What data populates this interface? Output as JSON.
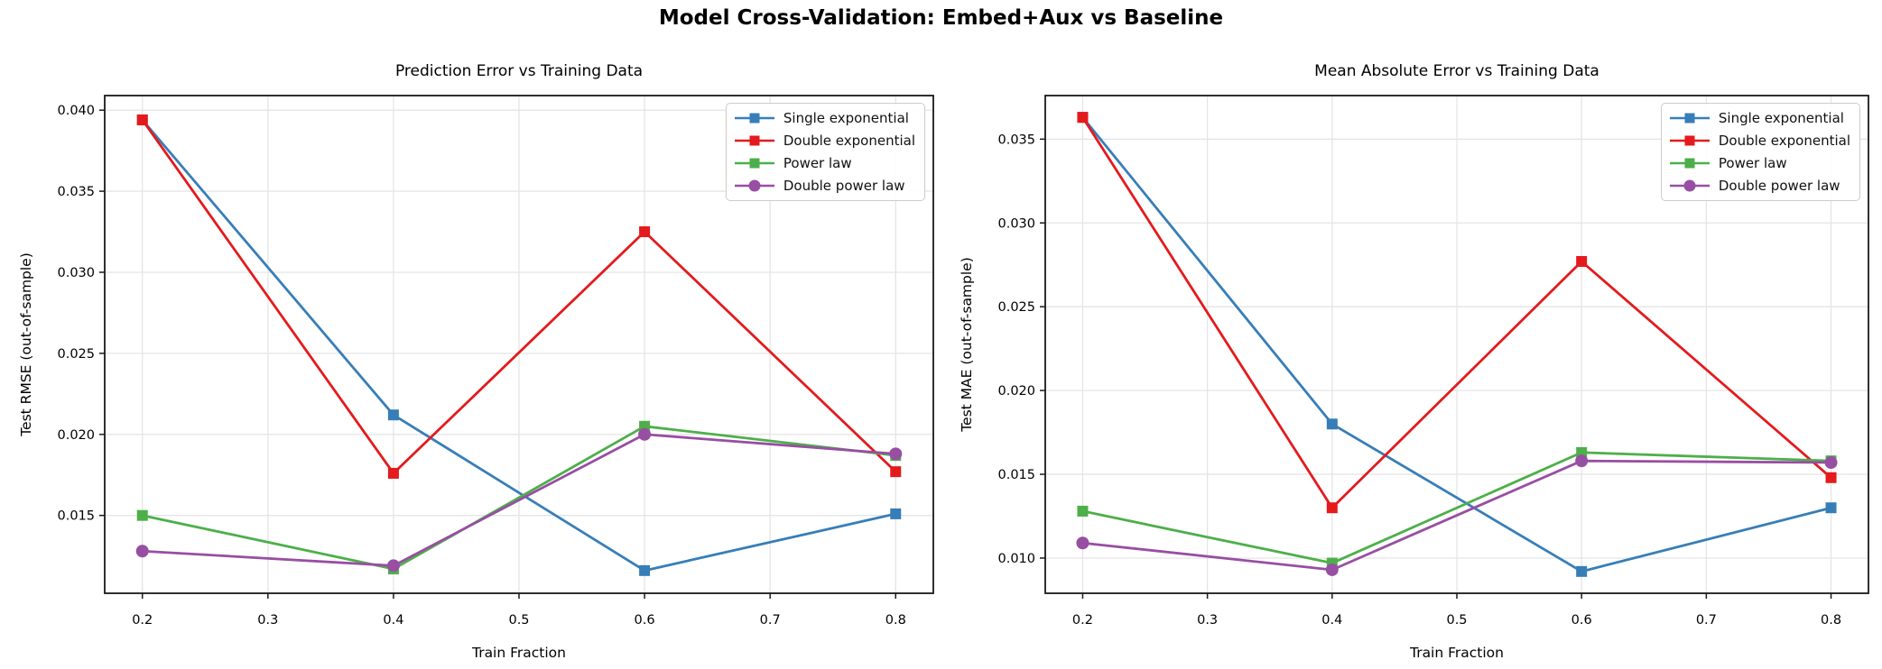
{
  "figure": {
    "suptitle": "Model Cross-Validation: Embed+Aux vs Baseline",
    "background": "#ffffff",
    "grid_color": "#e5e5e5",
    "spine_color": "#1a1a1a",
    "text_color": "#000000"
  },
  "chart_data": [
    {
      "type": "line",
      "title": "Prediction Error vs Training Data",
      "xlabel": "Train Fraction",
      "ylabel": "Test RMSE (out-of-sample)",
      "x": [
        0.2,
        0.4,
        0.6,
        0.8
      ],
      "series": [
        {
          "name": "Single exponential",
          "color": "#377eb8",
          "marker": "square",
          "values": [
            0.0394,
            0.0212,
            0.0116,
            0.0151
          ]
        },
        {
          "name": "Double exponential",
          "color": "#e41a1c",
          "marker": "square",
          "values": [
            0.0394,
            0.0176,
            0.0325,
            0.0177
          ]
        },
        {
          "name": "Power law",
          "color": "#4daf4a",
          "marker": "square",
          "values": [
            0.015,
            0.0117,
            0.0205,
            0.0187
          ]
        },
        {
          "name": "Double power law",
          "color": "#984ea3",
          "marker": "circle",
          "values": [
            0.0128,
            0.0119,
            0.02,
            0.0188
          ]
        }
      ],
      "xlim": [
        0.17,
        0.83
      ],
      "ylim": [
        0.0102,
        0.0409
      ],
      "xticks": [
        0.2,
        0.3,
        0.4,
        0.5,
        0.6,
        0.7,
        0.8
      ],
      "xtick_labels": [
        "0.2",
        "0.3",
        "0.4",
        "0.5",
        "0.6",
        "0.7",
        "0.8"
      ],
      "yticks": [
        0.015,
        0.02,
        0.025,
        0.03,
        0.035,
        0.04
      ],
      "ytick_labels": [
        "0.015",
        "0.020",
        "0.025",
        "0.030",
        "0.035",
        "0.040"
      ],
      "grid": true,
      "legend_position": "upper right"
    },
    {
      "type": "line",
      "title": "Mean Absolute Error vs Training Data",
      "xlabel": "Train Fraction",
      "ylabel": "Test MAE (out-of-sample)",
      "x": [
        0.2,
        0.4,
        0.6,
        0.8
      ],
      "series": [
        {
          "name": "Single exponential",
          "color": "#377eb8",
          "marker": "square",
          "values": [
            0.0363,
            0.018,
            0.0092,
            0.013
          ]
        },
        {
          "name": "Double exponential",
          "color": "#e41a1c",
          "marker": "square",
          "values": [
            0.0363,
            0.013,
            0.0277,
            0.0148
          ]
        },
        {
          "name": "Power law",
          "color": "#4daf4a",
          "marker": "square",
          "values": [
            0.0128,
            0.0097,
            0.0163,
            0.0158
          ]
        },
        {
          "name": "Double power law",
          "color": "#984ea3",
          "marker": "circle",
          "values": [
            0.0109,
            0.0093,
            0.0158,
            0.0157
          ]
        }
      ],
      "xlim": [
        0.17,
        0.83
      ],
      "ylim": [
        0.0079,
        0.0376
      ],
      "xticks": [
        0.2,
        0.3,
        0.4,
        0.5,
        0.6,
        0.7,
        0.8
      ],
      "xtick_labels": [
        "0.2",
        "0.3",
        "0.4",
        "0.5",
        "0.6",
        "0.7",
        "0.8"
      ],
      "yticks": [
        0.01,
        0.015,
        0.02,
        0.025,
        0.03,
        0.035
      ],
      "ytick_labels": [
        "0.010",
        "0.015",
        "0.020",
        "0.025",
        "0.030",
        "0.035"
      ],
      "grid": true,
      "legend_position": "upper right"
    }
  ]
}
